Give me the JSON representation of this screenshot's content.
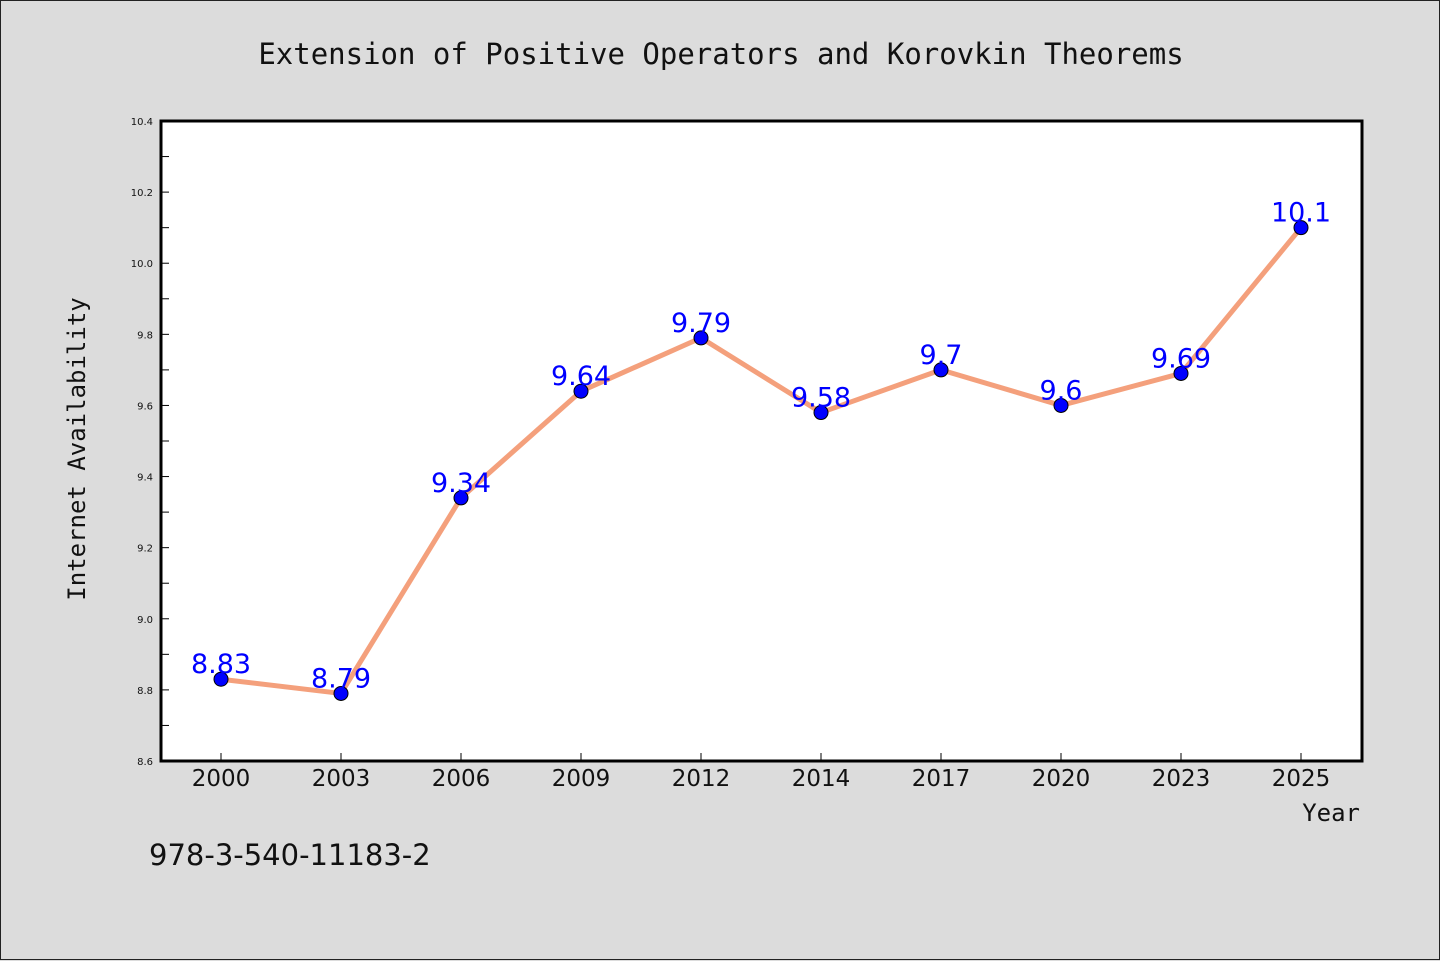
{
  "chart_data": {
    "type": "line",
    "title": "Extension of Positive Operators and Korovkin Theorems",
    "xlabel": "Year",
    "ylabel": "Internet Availability",
    "categories": [
      "2000",
      "2003",
      "2006",
      "2009",
      "2012",
      "2014",
      "2017",
      "2020",
      "2023",
      "2025"
    ],
    "series": [
      {
        "values": [
          8.83,
          8.79,
          9.34,
          9.64,
          9.79,
          9.58,
          9.7,
          9.6,
          9.69,
          10.1
        ],
        "labels": [
          "8.83",
          "8.79",
          "9.34",
          "9.64",
          "9.79",
          "9.58",
          "9.7",
          "9.6",
          "9.69",
          "10.1"
        ],
        "line_color": "#f4a07c",
        "marker_color": "#0000ff"
      }
    ],
    "ylim": [
      8.6,
      10.4
    ],
    "yticks": [
      "8.6",
      "8.8",
      "9.0",
      "9.2",
      "9.4",
      "9.6",
      "9.8",
      "10.0",
      "10.2",
      "10.4"
    ],
    "grid": false,
    "legend": "none"
  },
  "footnote": "978-3-540-11183-2"
}
